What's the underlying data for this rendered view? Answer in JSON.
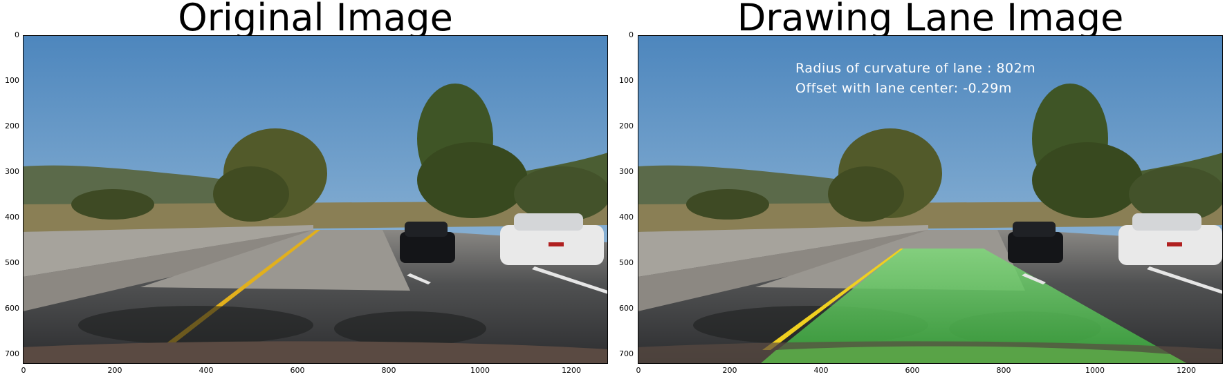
{
  "panels": [
    {
      "title": "Original Image",
      "y_ticks": [
        "0",
        "100",
        "200",
        "300",
        "400",
        "500",
        "600",
        "700"
      ],
      "x_ticks": [
        "0",
        "200",
        "400",
        "600",
        "800",
        "1000",
        "1200"
      ]
    },
    {
      "title": "Drawing Lane Image",
      "y_ticks": [
        "0",
        "100",
        "200",
        "300",
        "400",
        "500",
        "600",
        "700"
      ],
      "x_ticks": [
        "0",
        "200",
        "400",
        "600",
        "800",
        "1000",
        "1200"
      ],
      "overlay": {
        "radius_text": "Radius of curvature of lane : 802m",
        "offset_text": "Offset with lane center: -0.29m"
      }
    }
  ],
  "colors": {
    "sky": "#6f9ec8",
    "road": "#3b3d40",
    "lane_fill": "#3fb23f",
    "yellow_line": "#e0b020",
    "trees": "#4a5a2a"
  }
}
